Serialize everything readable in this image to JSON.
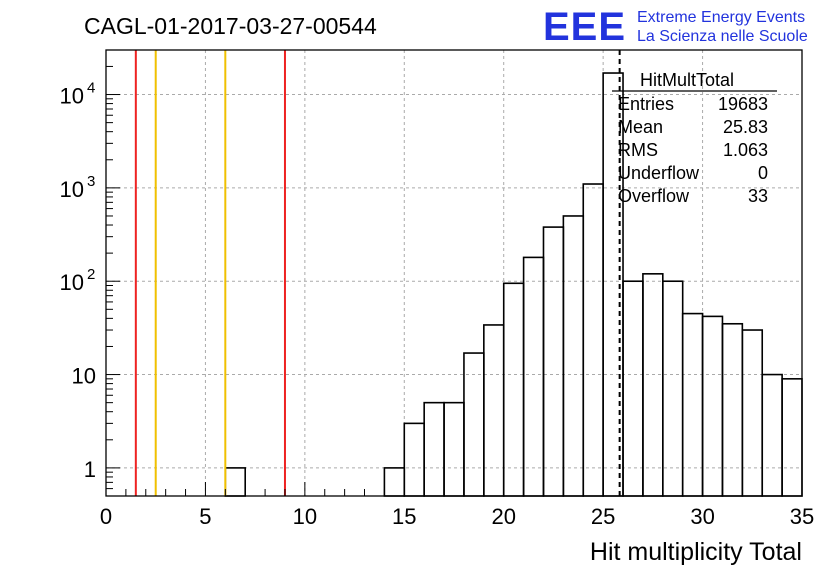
{
  "header": {
    "title": "CAGL-01-2017-03-27-00544",
    "logo_mark": "EEE",
    "logo_line1": "Extreme Energy Events",
    "logo_line2": "La Scienza nelle Scuole"
  },
  "stats_box": {
    "name": "HitMultTotal",
    "rows": [
      {
        "label": "Entries",
        "value": "19683"
      },
      {
        "label": "Mean",
        "value": "25.83"
      },
      {
        "label": "RMS",
        "value": "1.063"
      },
      {
        "label": "Underflow",
        "value": "0"
      },
      {
        "label": "Overflow",
        "value": "33"
      }
    ]
  },
  "chart_data": {
    "type": "histogram",
    "xlabel": "Hit multiplicity Total",
    "ylabel": "",
    "xlim": [
      0,
      35
    ],
    "ylim": [
      0.5,
      30000
    ],
    "log_y": true,
    "grid": true,
    "x_ticks": [
      "0",
      "5",
      "10",
      "15",
      "20",
      "25",
      "30",
      "35"
    ],
    "y_ticks": [
      {
        "value": 1,
        "label": "1"
      },
      {
        "value": 10,
        "label": "10"
      },
      {
        "value": 100,
        "label": "10",
        "exp": "2"
      },
      {
        "value": 1000,
        "label": "10",
        "exp": "3"
      },
      {
        "value": 10000,
        "label": "10",
        "exp": "4"
      }
    ],
    "bins": [
      {
        "x": 6.5,
        "y": 1
      },
      {
        "x": 14.5,
        "y": 1
      },
      {
        "x": 15.5,
        "y": 3
      },
      {
        "x": 16.5,
        "y": 5
      },
      {
        "x": 17.5,
        "y": 5
      },
      {
        "x": 18.5,
        "y": 17
      },
      {
        "x": 19.5,
        "y": 34
      },
      {
        "x": 20.5,
        "y": 95
      },
      {
        "x": 21.5,
        "y": 180
      },
      {
        "x": 22.5,
        "y": 380
      },
      {
        "x": 23.5,
        "y": 500
      },
      {
        "x": 24.5,
        "y": 1100
      },
      {
        "x": 25.5,
        "y": 17000
      },
      {
        "x": 26.5,
        "y": 100
      },
      {
        "x": 27.5,
        "y": 120
      },
      {
        "x": 28.5,
        "y": 100
      },
      {
        "x": 29.5,
        "y": 45
      },
      {
        "x": 30.5,
        "y": 42
      },
      {
        "x": 31.5,
        "y": 35
      },
      {
        "x": 32.5,
        "y": 30
      },
      {
        "x": 33.5,
        "y": 10
      },
      {
        "x": 34.5,
        "y": 9
      }
    ],
    "bin_width": 1,
    "vertical_lines": [
      {
        "x": 1.5,
        "color": "#ee2222",
        "style": "solid"
      },
      {
        "x": 2.5,
        "color": "#f0c000",
        "style": "solid"
      },
      {
        "x": 6,
        "color": "#f0c000",
        "style": "solid"
      },
      {
        "x": 9,
        "color": "#ee2222",
        "style": "solid"
      },
      {
        "x": 25.83,
        "color": "#000000",
        "style": "dashed"
      }
    ]
  }
}
